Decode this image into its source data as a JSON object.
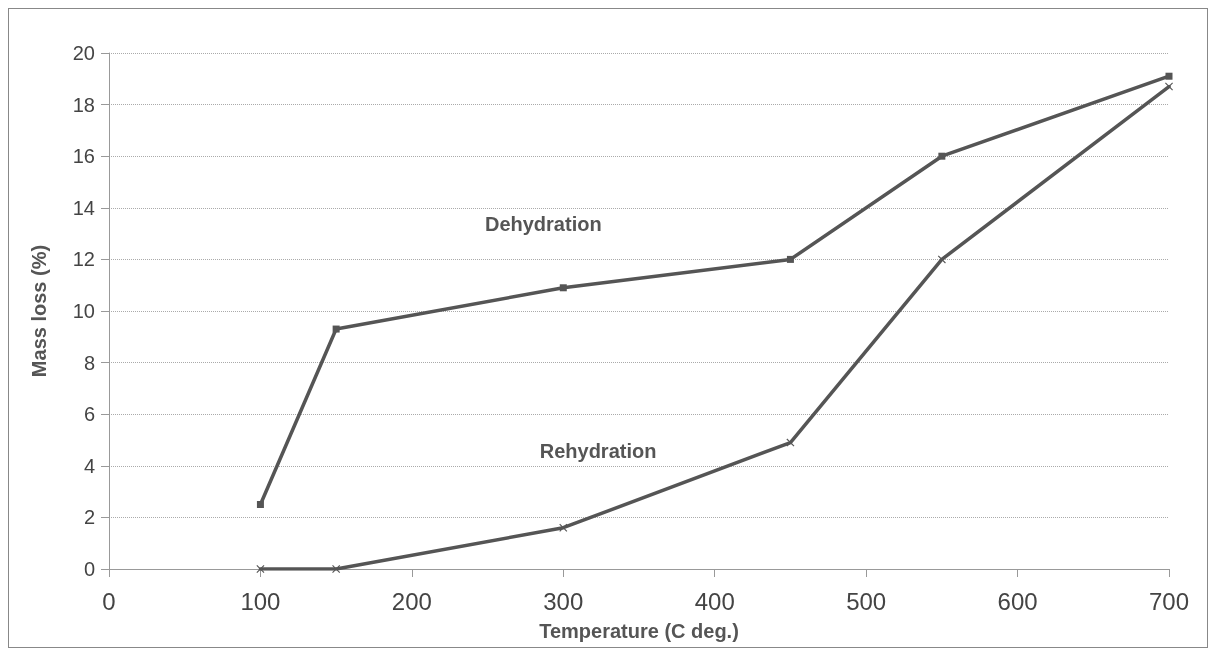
{
  "chart_data": {
    "type": "line",
    "xlabel": "Temperature (C deg.)",
    "ylabel": "Mass loss (%)",
    "x": [
      100,
      150,
      300,
      450,
      550,
      700
    ],
    "series": [
      {
        "name": "Dehydration",
        "color": "#555555",
        "marker": "square",
        "values": [
          2.5,
          9.3,
          10.9,
          12.0,
          16.0,
          19.1
        ]
      },
      {
        "name": "Rehydration",
        "color": "#555555",
        "marker": "cross",
        "values": [
          0,
          0,
          1.6,
          4.9,
          12.0,
          18.7
        ]
      }
    ],
    "xlim": [
      0,
      700
    ],
    "xticks": [
      0,
      100,
      200,
      300,
      400,
      500,
      600,
      700
    ],
    "ylim": [
      0,
      20
    ],
    "yticks": [
      0,
      2,
      4,
      6,
      8,
      10,
      12,
      14,
      16,
      18,
      20
    ],
    "grid": "y",
    "legend": false,
    "line_style": "solid"
  }
}
